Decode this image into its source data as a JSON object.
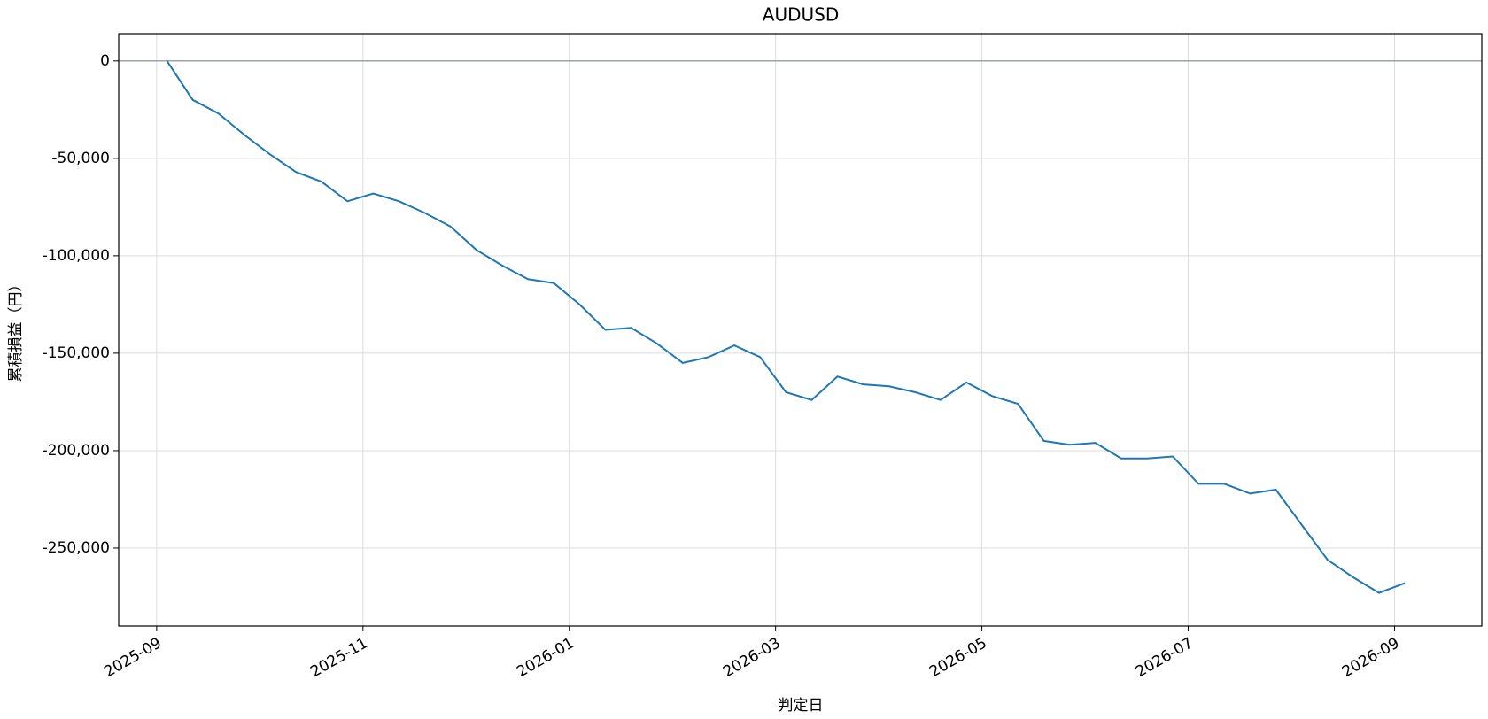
{
  "chart_data": {
    "type": "line",
    "title": "AUDUSD",
    "x_label": "判定日",
    "y_label": "累積損益（円）",
    "x": [
      "2025-09",
      "2025-09",
      "2025-09",
      "2025-09",
      "2025-10",
      "2025-10",
      "2025-10",
      "2025-10",
      "2025-11",
      "2025-11",
      "2025-11",
      "2025-11",
      "2025-12",
      "2025-12",
      "2025-12",
      "2025-12",
      "2026-01",
      "2026-01",
      "2026-01",
      "2026-01",
      "2026-02",
      "2026-02",
      "2026-02",
      "2026-02",
      "2026-03",
      "2026-03",
      "2026-03",
      "2026-03",
      "2026-04",
      "2026-04",
      "2026-04",
      "2026-04",
      "2026-05",
      "2026-05",
      "2026-05",
      "2026-05",
      "2026-06",
      "2026-06",
      "2026-06",
      "2026-06",
      "2026-07",
      "2026-07",
      "2026-07",
      "2026-07",
      "2026-08",
      "2026-08",
      "2026-08",
      "2026-08",
      "2026-09"
    ],
    "series": [
      {
        "name": "AUDUSD",
        "color": "#1f77b4",
        "values": [
          0,
          -20000,
          -27000,
          -38000,
          -48000,
          -57000,
          -62000,
          -72000,
          -68000,
          -72000,
          -78000,
          -85000,
          -97000,
          -105000,
          -112000,
          -114000,
          -125000,
          -138000,
          -137000,
          -145000,
          -155000,
          -152000,
          -146000,
          -152000,
          -170000,
          -174000,
          -162000,
          -166000,
          -167000,
          -170000,
          -174000,
          -165000,
          -172000,
          -176000,
          -195000,
          -197000,
          -196000,
          -204000,
          -204000,
          -203000,
          -217000,
          -217000,
          -222000,
          -220000,
          -238000,
          -256000,
          -265000,
          -273000,
          -268000
        ]
      }
    ],
    "xticks": [
      "2025-09",
      "2025-11",
      "2026-01",
      "2026-03",
      "2026-05",
      "2026-07",
      "2026-09"
    ],
    "ylim": [
      -290000,
      14000
    ],
    "yticks": [
      {
        "value": -250000,
        "label": "-250,000"
      },
      {
        "value": -200000,
        "label": "-200,000"
      },
      {
        "value": -150000,
        "label": "-150,000"
      },
      {
        "value": -100000,
        "label": "-100,000"
      },
      {
        "value": -50000,
        "label": "-50,000"
      },
      0
    ],
    "reference_line": 0,
    "grid": true
  }
}
